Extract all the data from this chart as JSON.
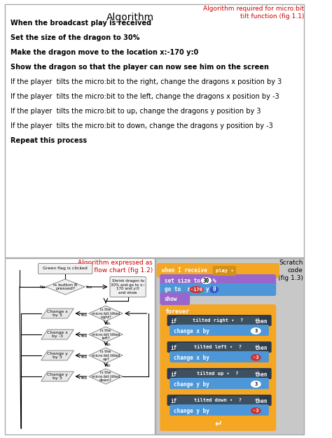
{
  "title": "Algorithm",
  "top_red_text": "Algorithm required for micro:bit\ntilt function (fig 1.1)",
  "algorithm_lines": [
    "When the broadcast play is received",
    "Set the size of the dragon to 30%",
    "Make the dragon move to the location x:-170 y:0",
    "Show the dragon so that the player can now see him on the screen",
    "If the player  tilts the micro:bit to the right, change the dragons x position by 3",
    "If the player  tilts the micro:bit to the left, change the dragons x position by -3",
    "If the player  tilts the micro:bit to up, change the dragons y position by 3",
    "If the player  tilts the micro:bit to down, change the dragons y position by -3",
    "Repeat this process"
  ],
  "bold_lines": [
    0,
    1,
    2,
    3,
    8
  ],
  "flowchart_title": "Algorithm expressed as\na flow chart (fig 1.2)",
  "scratch_title": "Scratch\ncode\n(fig 1.3)",
  "bg_color": "#ffffff",
  "red_color": "#cc0000",
  "orange": "#f5a623",
  "orange_dark": "#d4911a",
  "purple": "#9966cc",
  "blue": "#4d97d8",
  "dark_slate": "#2d3b4e",
  "fc_bg": "#f5f5f5",
  "scratch_bg": "#c8c8c8"
}
